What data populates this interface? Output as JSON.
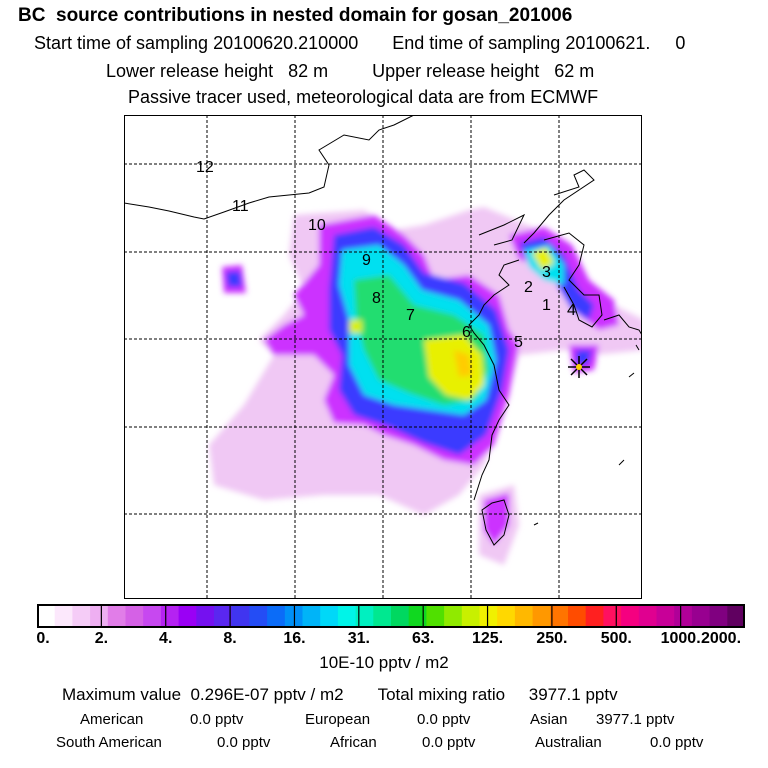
{
  "header": {
    "title": "BC  source contributions in nested domain for gosan_201006",
    "start_label": "Start time of sampling 20100620.210000",
    "end_label": "End time of sampling 20100621.     0",
    "lower_label": "Lower release height   82 m",
    "upper_label": "Upper release height   62 m",
    "tracer_label": "Passive tracer used, meteorological data are from ECMWF"
  },
  "map": {
    "trajectory_labels": [
      "1",
      "2",
      "3",
      "4",
      "5",
      "6",
      "7",
      "8",
      "9",
      "10",
      "11",
      "12"
    ],
    "receptor_icon": "asterisk-star-icon",
    "plume_colors": [
      "#f0d0f0",
      "#cc33ff",
      "#3333ff",
      "#0099ff",
      "#00ffff",
      "#00e066",
      "#ffff00",
      "#ff9900"
    ]
  },
  "colorbar": {
    "ticks": [
      "0.",
      "2.",
      "4.",
      "8.",
      "16.",
      "31.",
      "63.",
      "125.",
      "250.",
      "500.",
      "1000.",
      "2000."
    ],
    "colors": [
      "#ffffff",
      "#fce8fc",
      "#f5ccf7",
      "#eeaff2",
      "#e17de8",
      "#d561e6",
      "#c748f0",
      "#b522f2",
      "#9a00f5",
      "#7511f0",
      "#5a27f0",
      "#4035f0",
      "#244df5",
      "#0b6cf8",
      "#0090f8",
      "#00b4f8",
      "#00d8f8",
      "#00f4e8",
      "#00f0c0",
      "#00e890",
      "#00d860",
      "#10d820",
      "#50e000",
      "#90ea00",
      "#c8f000",
      "#f0f000",
      "#ffd800",
      "#ffb800",
      "#ff9800",
      "#ff7400",
      "#ff4c00",
      "#ff2020",
      "#ff1060",
      "#f50080",
      "#e00090",
      "#c80098",
      "#b00098",
      "#980090",
      "#800080",
      "#600060"
    ],
    "units": "10E-10 pptv / m2"
  },
  "stats": {
    "max_label": "Maximum value  0.296E-07 pptv / m2",
    "total_label": "Total mixing ratio     3977.1 pptv",
    "american_label": "American",
    "american_value": "0.0 pptv",
    "european_label": "European",
    "european_value": "0.0 pptv",
    "asian_label": "Asian",
    "asian_value": "3977.1 pptv",
    "south_american_label": "South American",
    "south_american_value": "0.0 pptv",
    "african_label": "African",
    "african_value": "0.0 pptv",
    "australian_label": "Australian",
    "australian_value": "0.0 pptv"
  }
}
